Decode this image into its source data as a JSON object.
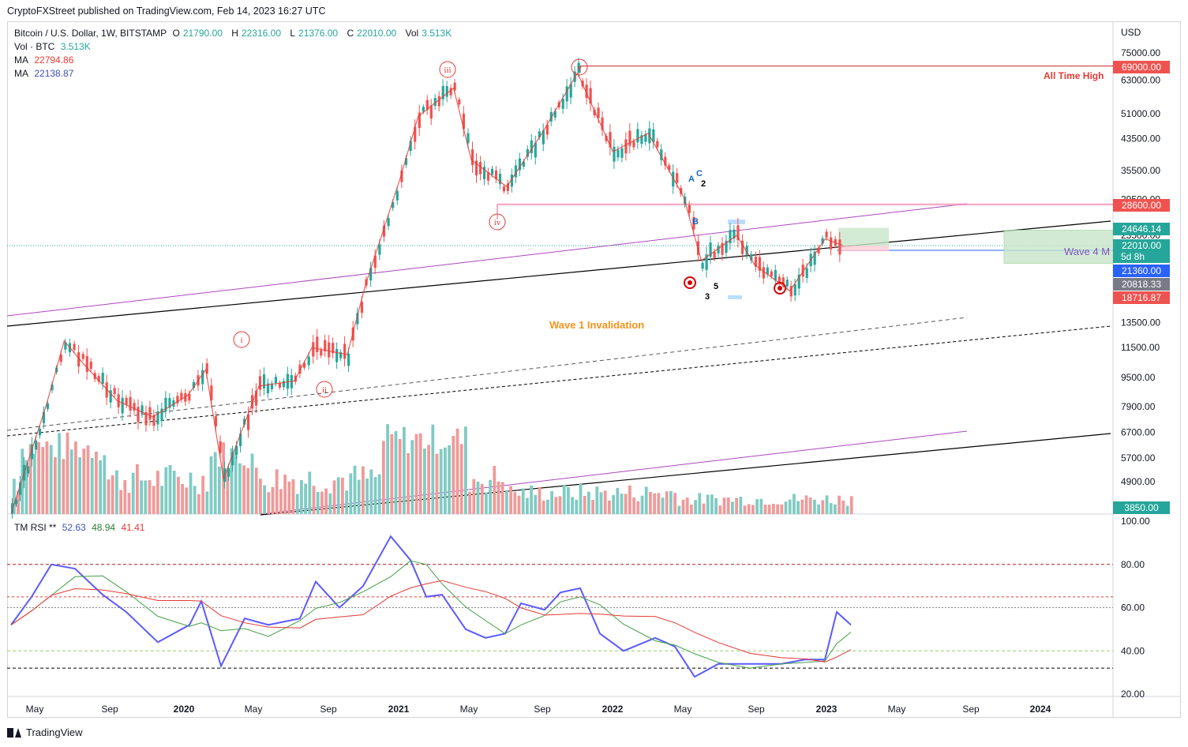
{
  "publisher": "CryptoFXStreet published on TradingView.com, Feb 14, 2023 16:27 UTC",
  "legend": {
    "symbol": "Bitcoin / U.S. Dollar, 1W, BITSTAMP",
    "o_label": "O",
    "o_value": "21790.00",
    "h_label": "H",
    "h_value": "22316.00",
    "l_label": "L",
    "l_value": "21376.00",
    "c_label": "C",
    "c_value": "22010.00",
    "vol_label": "Vol",
    "vol_value": "3.513K",
    "vol_line_label": "Vol · BTC",
    "vol_line_value": "3.513K",
    "ma1_label": "MA",
    "ma1_value": "22794.86",
    "ma2_label": "MA",
    "ma2_value": "22138.87",
    "rsi_label": "TM RSI **",
    "rsi_v1": "52.63",
    "rsi_v2": "48.94",
    "rsi_v3": "41.41"
  },
  "currency": "USD",
  "colors": {
    "up": "#26a69a",
    "down": "#ef5350",
    "ma1": "#e53935",
    "ma2": "#3f51b5",
    "purple": "#ab47bc",
    "pink": "#f48fb1",
    "orange": "#f7931a",
    "rsi": "#5b5bff"
  },
  "price_axis_ticks": [
    "75000.00",
    "63000.00",
    "51000.00",
    "43500.00",
    "35500.00",
    "29500.00",
    "23500.00",
    "13500.00",
    "11500.00",
    "9500.00",
    "7900.00",
    "6700.00",
    "5700.00",
    "4900.00"
  ],
  "price_tags": [
    {
      "label": "69000.00",
      "bg": "#ef5350"
    },
    {
      "label": "28600.00",
      "bg": "#ef5350"
    },
    {
      "label": "24646.14",
      "bg": "#26a69a"
    },
    {
      "label": "22010.00",
      "bg": "#26a69a",
      "sub": "5d 8h"
    },
    {
      "label": "21360.00",
      "bg": "#2962ff"
    },
    {
      "label": "20818.33",
      "bg": "#787b86"
    },
    {
      "label": "18716.87",
      "bg": "#ef5350"
    },
    {
      "label": "3850.00",
      "bg": "#26a69a"
    }
  ],
  "rsi_axis_ticks": [
    "100.00",
    "80.00",
    "60.00",
    "40.00",
    "20.00"
  ],
  "time_axis": [
    "May",
    "Sep",
    "2020",
    "May",
    "Sep",
    "2021",
    "May",
    "Sep",
    "2022",
    "May",
    "Sep",
    "2023",
    "May",
    "Sep",
    "2024"
  ],
  "annotations": {
    "all_time_high": "All Time High",
    "wave1_invalidation": "Wave 1 Invalidation",
    "wave4": "Wave 4 M",
    "wave_labels": [
      "iii",
      "v",
      "iv",
      "i",
      "ii"
    ],
    "abc": [
      "A",
      "B",
      "C",
      "2",
      "3",
      "5"
    ]
  },
  "footer": "TradingView",
  "chart_data": {
    "type": "candlestick",
    "title": "Bitcoin / U.S. Dollar, 1W, BITSTAMP",
    "series": [
      {
        "name": "Price",
        "approx_path": [
          [
            "2019-03",
            4000
          ],
          [
            "2019-05",
            8000
          ],
          [
            "2019-06",
            12000
          ],
          [
            "2019-07",
            10500
          ],
          [
            "2019-09",
            8200
          ],
          [
            "2019-11",
            7400
          ],
          [
            "2020-01",
            8500
          ],
          [
            "2020-02",
            10000
          ],
          [
            "2020-03",
            5000
          ],
          [
            "2020-05",
            9000
          ],
          [
            "2020-07",
            9300
          ],
          [
            "2020-08",
            11500
          ],
          [
            "2020-10",
            11000
          ],
          [
            "2020-11",
            17000
          ],
          [
            "2020-12",
            24000
          ],
          [
            "2021-01",
            34000
          ],
          [
            "2021-02",
            50000
          ],
          [
            "2021-04",
            60000
          ],
          [
            "2021-05",
            38000
          ],
          [
            "2021-07",
            32000
          ],
          [
            "2021-09",
            45000
          ],
          [
            "2021-11",
            66000
          ],
          [
            "2022-01",
            40000
          ],
          [
            "2022-03",
            45000
          ],
          [
            "2022-05",
            30000
          ],
          [
            "2022-06",
            20000
          ],
          [
            "2022-08",
            23500
          ],
          [
            "2022-09",
            19500
          ],
          [
            "2022-11",
            16500
          ],
          [
            "2023-01",
            23000
          ],
          [
            "2023-02",
            22010
          ]
        ]
      }
    ],
    "levels": {
      "all_time_high": 69000,
      "resistance": 28600,
      "tp": 24646.14,
      "current": 22010,
      "stop": 18716.87
    },
    "ylabel": "USD",
    "yscale": "log"
  }
}
